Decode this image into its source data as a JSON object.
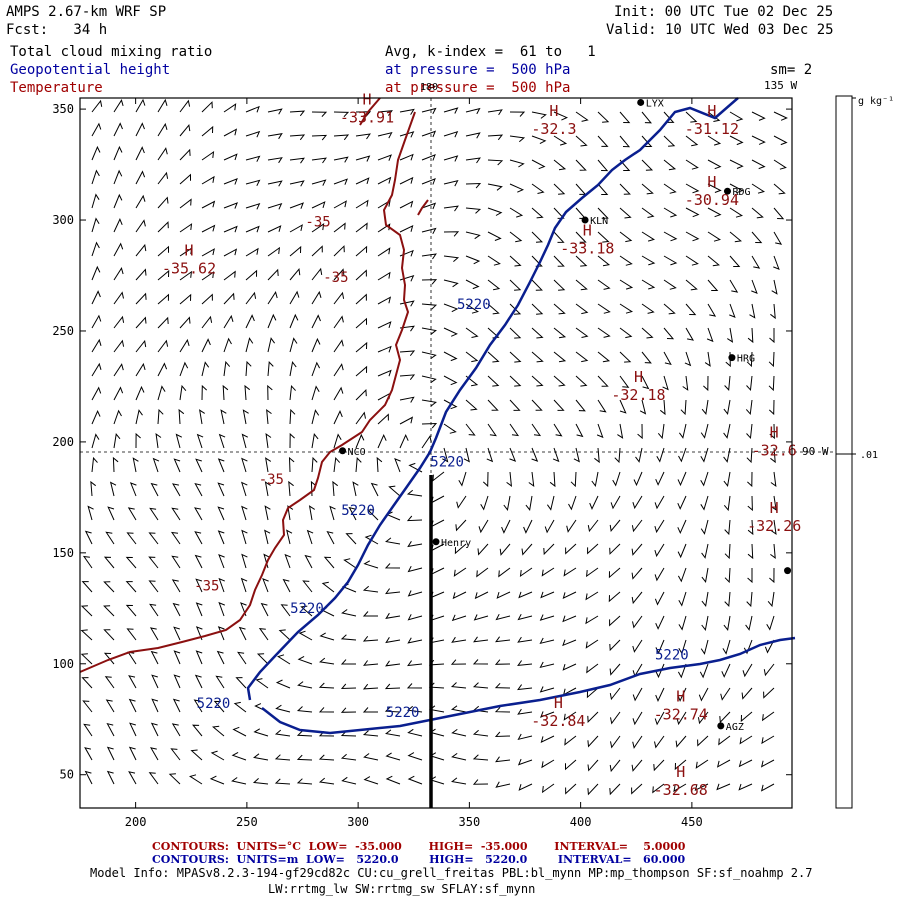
{
  "header": {
    "model_title": "AMPS 2.67-km WRF SP",
    "forecast": "Fcst:   34 h",
    "init": "Init: 00 UTC Tue 02 Dec 25",
    "valid": "Valid: 10 UTC Wed 03 Dec 25",
    "field1": "Total cloud mixing ratio",
    "field2": "Geopotential height",
    "field3": "Temperature",
    "avg_line": "Avg, k-index =  61 to   1",
    "pressure1": "at pressure =  500 hPa",
    "pressure2": "at pressure =  500 hPa",
    "smoothing": "sm= 2",
    "lon_top": "135 W",
    "lon_right": "90 W",
    "lon_mid": "180",
    "colorbar_units": "g kg⁻¹",
    "colorbar_value": ".01"
  },
  "colors": {
    "height_contour": "#0a1f8f",
    "temp_contour": "#8b1010",
    "cross_section": "#000000"
  },
  "chart_data": {
    "type": "map",
    "x_ticks": [
      200,
      250,
      300,
      350,
      400,
      450
    ],
    "y_ticks": [
      50,
      100,
      150,
      200,
      250,
      300,
      350
    ],
    "xlim": [
      175,
      495
    ],
    "ylim": [
      35,
      355
    ],
    "stations": [
      {
        "name": "LYX",
        "x": 427,
        "y": 353
      },
      {
        "name": "RDG",
        "x": 466,
        "y": 313
      },
      {
        "name": "KLN",
        "x": 402,
        "y": 300
      },
      {
        "name": "HRG",
        "x": 468,
        "y": 238
      },
      {
        "name": "NCO",
        "x": 293,
        "y": 196
      },
      {
        "name": "Henry",
        "x": 335,
        "y": 155
      },
      {
        "name": "",
        "x": 493,
        "y": 142
      },
      {
        "name": "AGZ",
        "x": 463,
        "y": 72
      }
    ],
    "height_contour_labels": [
      {
        "text": "5220",
        "x": 352,
        "y": 260
      },
      {
        "text": "5220",
        "x": 340,
        "y": 189
      },
      {
        "text": "5220",
        "x": 300,
        "y": 167
      },
      {
        "text": "5220",
        "x": 277,
        "y": 123
      },
      {
        "text": "5220",
        "x": 235,
        "y": 80
      },
      {
        "text": "5220",
        "x": 320,
        "y": 76
      },
      {
        "text": "5220",
        "x": 441,
        "y": 102
      }
    ],
    "temp_contour_labels": [
      {
        "text": "-35",
        "x": 282,
        "y": 297
      },
      {
        "text": "-35",
        "x": 290,
        "y": 272
      },
      {
        "text": "-35",
        "x": 261,
        "y": 181
      },
      {
        "text": "-35",
        "x": 232,
        "y": 133
      }
    ],
    "pressure_centers": [
      {
        "letter": "H",
        "value": "-33.91",
        "x": 304,
        "y": 352
      },
      {
        "letter": "H",
        "value": "-32.3",
        "x": 388,
        "y": 347
      },
      {
        "letter": "H",
        "value": "-31.12",
        "x": 459,
        "y": 347
      },
      {
        "letter": "H",
        "value": "-30.94",
        "x": 459,
        "y": 315
      },
      {
        "letter": "H",
        "value": "-33.18",
        "x": 403,
        "y": 293
      },
      {
        "letter": "H",
        "value": "-35.62",
        "x": 224,
        "y": 284
      },
      {
        "letter": "H",
        "value": "-32.18",
        "x": 426,
        "y": 227
      },
      {
        "letter": "H",
        "value": "-32.6",
        "x": 487,
        "y": 202
      },
      {
        "letter": "H",
        "value": "-32.26",
        "x": 487,
        "y": 168
      },
      {
        "letter": "H",
        "value": "-32.84",
        "x": 390,
        "y": 80
      },
      {
        "letter": "H",
        "value": "-32.74",
        "x": 445,
        "y": 83
      },
      {
        "letter": "H",
        "value": "-32.68",
        "x": 445,
        "y": 49
      }
    ]
  },
  "footer": {
    "red_line": "CONTOURS:  UNITS=°C  LOW=  -35.000       HIGH=  -35.000       INTERVAL=    5.0000",
    "blue_line": "CONTOURS:  UNITS=m  LOW=   5220.0        HIGH=   5220.0        INTERVAL=   60.000",
    "model_info": "Model Info: MPASv8.2.3-194-gf29cd82c CU:cu_grell_freitas PBL:bl_mynn MP:mp_thompson SF:sf_noahmp 2.7",
    "model_info2": "LW:rrtmg_lw SW:rrtmg_sw SFLAY:sf_mynn"
  }
}
